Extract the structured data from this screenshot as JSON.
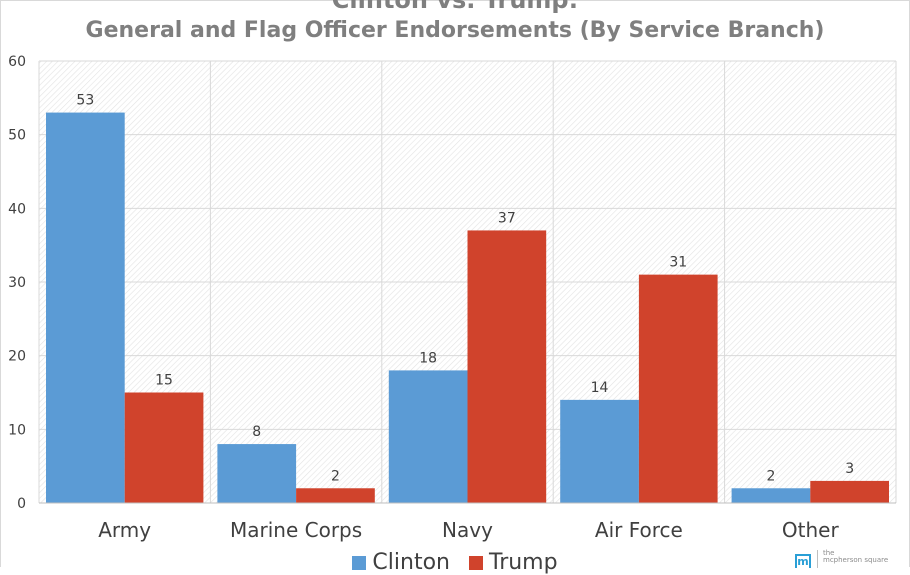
{
  "chart_data": {
    "type": "bar",
    "title": "Clinton vs. Trump:",
    "subtitle": "General and Flag Officer Endorsements (By Service Branch)",
    "categories": [
      "Army",
      "Marine Corps",
      "Navy",
      "Air Force",
      "Other"
    ],
    "series": [
      {
        "name": "Clinton",
        "values": [
          53,
          8,
          18,
          14,
          2
        ],
        "color": "#5b9bd5"
      },
      {
        "name": "Trump",
        "values": [
          15,
          2,
          37,
          31,
          3
        ],
        "color": "#d0432c"
      }
    ],
    "ylim": [
      0,
      60
    ],
    "yticks": [
      0,
      10,
      20,
      30,
      40,
      50,
      60
    ],
    "grid": true,
    "data_labels": true,
    "legend_position": "bottom"
  },
  "legend": {
    "clinton": "Clinton",
    "trump": "Trump"
  },
  "logo": {
    "line1": "the",
    "line2": "mcpherson square",
    "mark": "m"
  }
}
